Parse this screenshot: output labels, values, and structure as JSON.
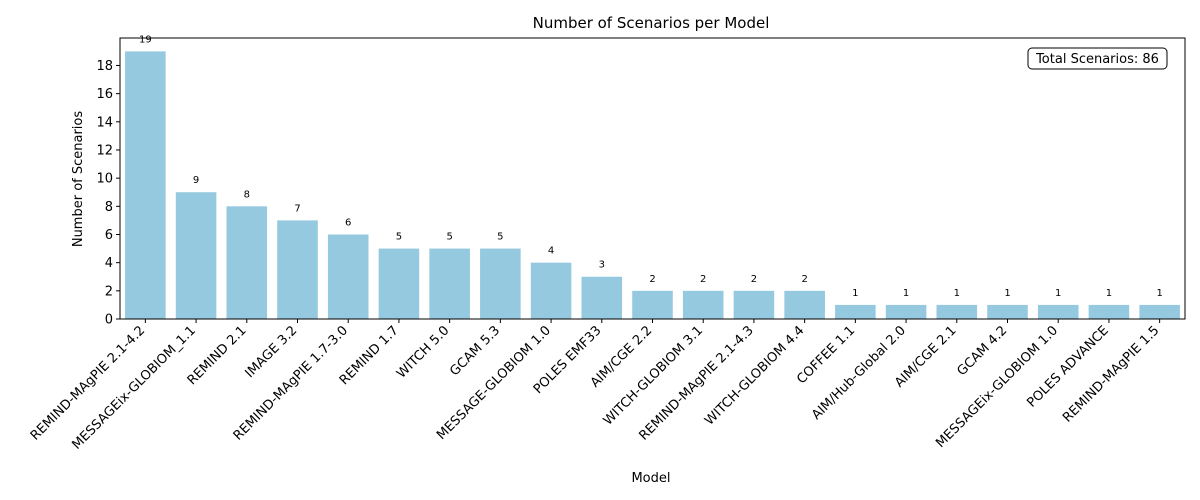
{
  "chart_data": {
    "type": "bar",
    "title": "Number of Scenarios per Model",
    "xlabel": "Model",
    "ylabel": "Number of Scenarios",
    "categories": [
      "REMIND-MAgPIE 2.1-4.2",
      "MESSAGEix-GLOBIOM_1.1",
      "REMIND 2.1",
      "IMAGE 3.2",
      "REMIND-MAgPIE 1.7-3.0",
      "REMIND 1.7",
      "WITCH 5.0",
      "GCAM 5.3",
      "MESSAGE-GLOBIOM 1.0",
      "POLES EMF33",
      "AIM/CGE 2.2",
      "WITCH-GLOBIOM 3.1",
      "REMIND-MAgPIE 2.1-4.3",
      "WITCH-GLOBIOM 4.4",
      "COFFEE 1.1",
      "AIM/Hub-Global 2.0",
      "AIM/CGE 2.1",
      "GCAM 4.2",
      "MESSAGEix-GLOBIOM 1.0",
      "POLES ADVANCE",
      "REMIND-MAgPIE 1.5"
    ],
    "values": [
      19,
      9,
      8,
      7,
      6,
      5,
      5,
      5,
      4,
      3,
      2,
      2,
      2,
      2,
      1,
      1,
      1,
      1,
      1,
      1,
      1
    ],
    "ylim": [
      0,
      19.95
    ],
    "yticks": [
      0,
      2,
      4,
      6,
      8,
      10,
      12,
      14,
      16,
      18
    ],
    "bar_color": "#95c9df",
    "grid": false,
    "annotation": {
      "text": "Total Scenarios: 86",
      "placement": "top-right"
    }
  }
}
